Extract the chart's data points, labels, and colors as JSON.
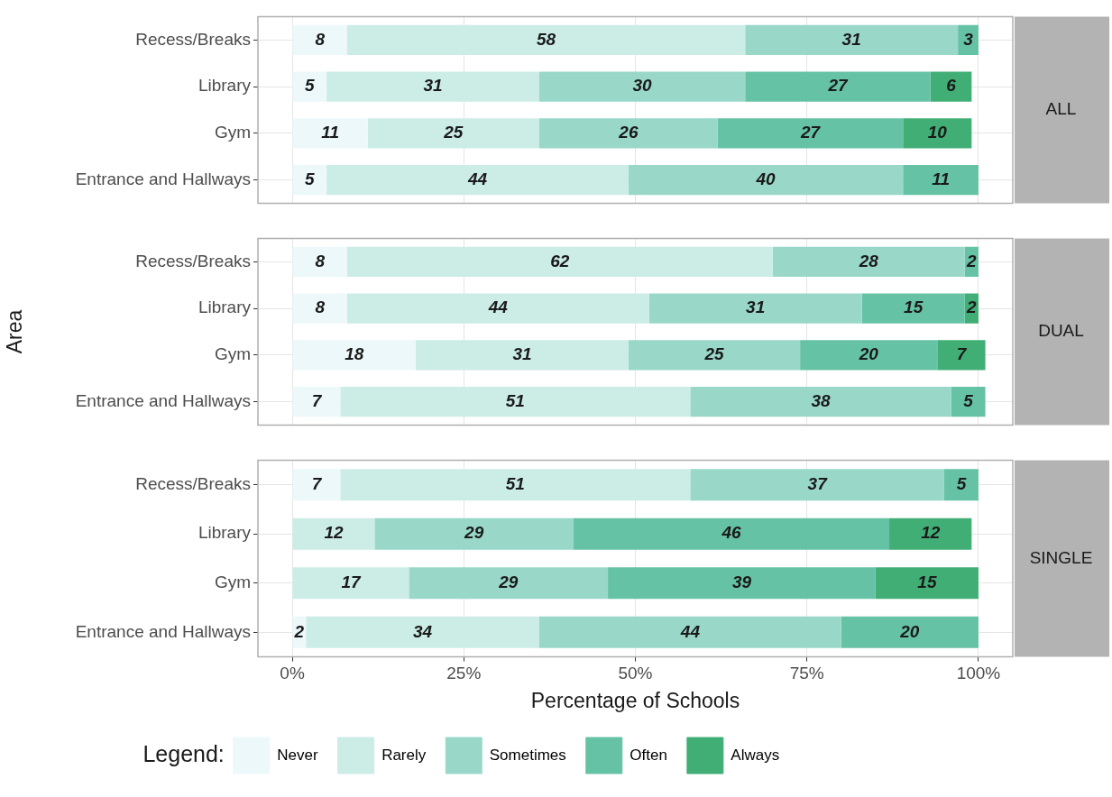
{
  "chart_data": [
    {
      "type": "bar",
      "orientation": "horizontal",
      "stacked": true,
      "annotations": [
        "ALL"
      ],
      "categories": [
        "Recess/Breaks",
        "Library",
        "Gym",
        "Entrance and Hallways"
      ],
      "series": [
        {
          "color": "#edf8fb",
          "values": [
            8,
            5,
            11,
            5
          ]
        },
        {
          "color": "#ccece6",
          "values": [
            58,
            31,
            25,
            44
          ]
        },
        {
          "color": "#99d8c9",
          "values": [
            31,
            30,
            26,
            40
          ]
        },
        {
          "color": "#66c2a4",
          "values": [
            3,
            27,
            27,
            11
          ]
        },
        {
          "color": "#41ae76",
          "values": [
            null,
            6,
            10,
            null
          ]
        }
      ],
      "xlim": [
        -5,
        105
      ],
      "xticks": [
        {
          "value": 0,
          "label": null
        },
        {
          "value": 25,
          "label": null
        },
        {
          "value": 50,
          "label": null
        },
        {
          "value": 75,
          "label": null
        },
        {
          "value": 100,
          "label": null
        }
      ],
      "tick_labels": "y",
      "grid": true,
      "data_labels": true
    },
    {
      "type": "bar",
      "orientation": "horizontal",
      "stacked": true,
      "annotations": [
        "DUAL"
      ],
      "ylabel": "Area",
      "categories": [
        "Recess/Breaks",
        "Library",
        "Gym",
        "Entrance and Hallways"
      ],
      "series": [
        {
          "color": "#edf8fb",
          "values": [
            8,
            8,
            18,
            7
          ]
        },
        {
          "color": "#ccece6",
          "values": [
            62,
            44,
            31,
            51
          ]
        },
        {
          "color": "#99d8c9",
          "values": [
            28,
            31,
            25,
            38
          ]
        },
        {
          "color": "#66c2a4",
          "values": [
            2,
            15,
            20,
            5
          ]
        },
        {
          "color": "#41ae76",
          "values": [
            null,
            2,
            7,
            null
          ]
        }
      ],
      "xlim": [
        -5,
        105
      ],
      "xticks": [
        {
          "value": 0,
          "label": null
        },
        {
          "value": 25,
          "label": null
        },
        {
          "value": 50,
          "label": null
        },
        {
          "value": 75,
          "label": null
        },
        {
          "value": 100,
          "label": null
        }
      ],
      "tick_labels": "y",
      "grid": true,
      "data_labels": true
    },
    {
      "type": "bar",
      "orientation": "horizontal",
      "stacked": true,
      "annotations": [
        "SINGLE"
      ],
      "xlabel": "Percentage of Schools",
      "legend_title": "Legend:",
      "categories": [
        "Recess/Breaks",
        "Library",
        "Gym",
        "Entrance and Hallways"
      ],
      "series": [
        {
          "name": "Never",
          "color": "#edf8fb",
          "values": [
            7,
            null,
            null,
            2
          ]
        },
        {
          "name": "Rarely",
          "color": "#ccece6",
          "values": [
            51,
            12,
            17,
            34
          ]
        },
        {
          "name": "Sometimes",
          "color": "#99d8c9",
          "values": [
            37,
            29,
            29,
            44
          ]
        },
        {
          "name": "Often",
          "color": "#66c2a4",
          "values": [
            5,
            46,
            39,
            20
          ]
        },
        {
          "name": "Always",
          "color": "#41ae76",
          "values": [
            null,
            12,
            15,
            null
          ]
        }
      ],
      "xlim": [
        -5,
        105
      ],
      "xticks": [
        {
          "value": 0,
          "label": "0%"
        },
        {
          "value": 25,
          "label": "25%"
        },
        {
          "value": 50,
          "label": "50%"
        },
        {
          "value": 75,
          "label": "75%"
        },
        {
          "value": 100,
          "label": "100%"
        }
      ],
      "grid": true,
      "data_labels": true,
      "legend": "bottom"
    }
  ]
}
